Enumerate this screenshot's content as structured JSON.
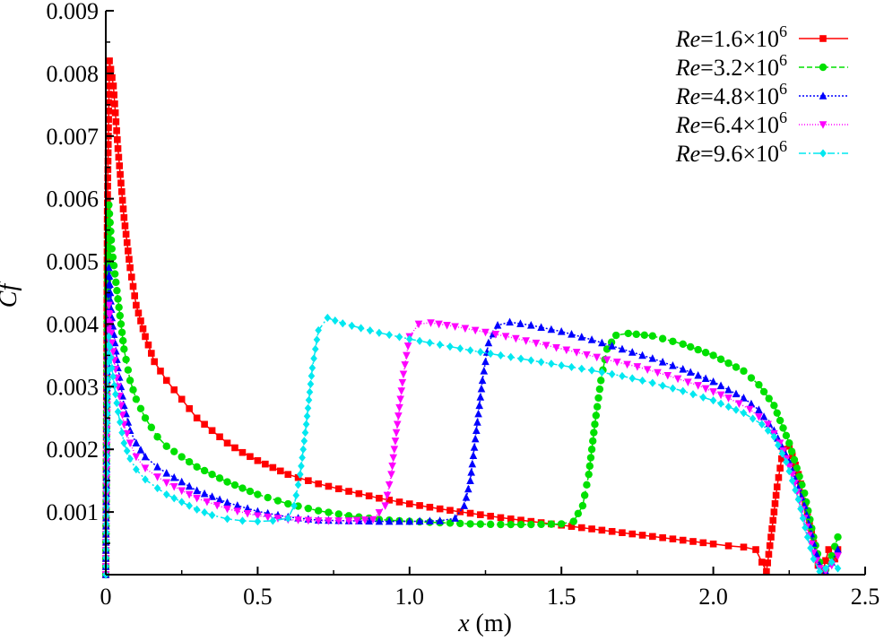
{
  "chart_data": {
    "type": "line",
    "title": "",
    "xlabel": "x (m)",
    "xlabel_var": "x",
    "xlabel_unit": " (m)",
    "ylabel": "Cf",
    "xlim": [
      0,
      2.5
    ],
    "ylim": [
      0,
      0.009
    ],
    "xticks": [
      0,
      0.5,
      1.0,
      1.5,
      2.0,
      2.5
    ],
    "xtick_labels": [
      "0",
      "0.5",
      "1.0",
      "1.5",
      "2.0",
      "2.5"
    ],
    "yticks": [
      0.001,
      0.002,
      0.003,
      0.004,
      0.005,
      0.006,
      0.007,
      0.008,
      0.009
    ],
    "ytick_labels": [
      "0.001",
      "0.002",
      "0.003",
      "0.004",
      "0.005",
      "0.006",
      "0.007",
      "0.008",
      "0.009"
    ],
    "grid": false,
    "legend_position": "top-right",
    "series": [
      {
        "name": "Re=1.6×10^6",
        "label_var": "Re",
        "label_rest": "=1.6×10",
        "label_exp": "6",
        "color": "#ff0000",
        "marker": "square",
        "dash": "",
        "points": [
          [
            0,
            0
          ],
          [
            0.005,
            0.0058
          ],
          [
            0.012,
            0.0082
          ],
          [
            0.025,
            0.0078
          ],
          [
            0.04,
            0.0068
          ],
          [
            0.06,
            0.0057
          ],
          [
            0.08,
            0.0049
          ],
          [
            0.1,
            0.0043
          ],
          [
            0.13,
            0.0038
          ],
          [
            0.16,
            0.0034
          ],
          [
            0.2,
            0.0031
          ],
          [
            0.25,
            0.0028
          ],
          [
            0.3,
            0.0025
          ],
          [
            0.35,
            0.0023
          ],
          [
            0.4,
            0.0021
          ],
          [
            0.45,
            0.00195
          ],
          [
            0.5,
            0.00182
          ],
          [
            0.6,
            0.0016
          ],
          [
            0.7,
            0.00145
          ],
          [
            0.8,
            0.00133
          ],
          [
            0.9,
            0.00122
          ],
          [
            1.0,
            0.00113
          ],
          [
            1.1,
            0.00105
          ],
          [
            1.2,
            0.00098
          ],
          [
            1.3,
            0.00091
          ],
          [
            1.4,
            0.00085
          ],
          [
            1.5,
            0.00079
          ],
          [
            1.6,
            0.00073
          ],
          [
            1.7,
            0.00067
          ],
          [
            1.8,
            0.00061
          ],
          [
            1.9,
            0.00055
          ],
          [
            2.0,
            0.00049
          ],
          [
            2.05,
            0.00046
          ],
          [
            2.1,
            0.00044
          ],
          [
            2.14,
            0.0004
          ],
          [
            2.16,
            0.0002
          ],
          [
            2.175,
            5e-05
          ],
          [
            2.19,
            0.0006
          ],
          [
            2.21,
            0.0014
          ],
          [
            2.23,
            0.002
          ],
          [
            2.25,
            0.00205
          ],
          [
            2.28,
            0.0016
          ],
          [
            2.31,
            0.001
          ],
          [
            2.33,
            0.0005
          ],
          [
            2.345,
            0.00015
          ],
          [
            2.36,
            5e-05
          ],
          [
            2.38,
            0.0004
          ],
          [
            2.4,
            0.00025
          ],
          [
            2.41,
            0.0004
          ]
        ]
      },
      {
        "name": "Re=3.2×10^6",
        "label_var": "Re",
        "label_rest": "=3.2×10",
        "label_exp": "6",
        "color": "#00e000",
        "marker": "circle",
        "dash": "6 3",
        "points": [
          [
            0,
            0
          ],
          [
            0.005,
            0.0043
          ],
          [
            0.01,
            0.0059
          ],
          [
            0.02,
            0.0052
          ],
          [
            0.04,
            0.0044
          ],
          [
            0.06,
            0.0036
          ],
          [
            0.08,
            0.0031
          ],
          [
            0.1,
            0.0028
          ],
          [
            0.13,
            0.0025
          ],
          [
            0.17,
            0.0022
          ],
          [
            0.2,
            0.00205
          ],
          [
            0.25,
            0.00188
          ],
          [
            0.3,
            0.00172
          ],
          [
            0.4,
            0.00148
          ],
          [
            0.5,
            0.00128
          ],
          [
            0.6,
            0.00113
          ],
          [
            0.7,
            0.00102
          ],
          [
            0.8,
            0.00094
          ],
          [
            0.9,
            0.00088
          ],
          [
            1.0,
            0.00085
          ],
          [
            1.1,
            0.00083
          ],
          [
            1.2,
            0.00081
          ],
          [
            1.3,
            0.0008
          ],
          [
            1.4,
            0.0008
          ],
          [
            1.5,
            0.00081
          ],
          [
            1.54,
            0.00085
          ],
          [
            1.57,
            0.0011
          ],
          [
            1.59,
            0.0016
          ],
          [
            1.61,
            0.0024
          ],
          [
            1.63,
            0.0031
          ],
          [
            1.65,
            0.0036
          ],
          [
            1.68,
            0.00382
          ],
          [
            1.72,
            0.00385
          ],
          [
            1.8,
            0.00381
          ],
          [
            1.9,
            0.00368
          ],
          [
            2.0,
            0.0035
          ],
          [
            2.1,
            0.00325
          ],
          [
            2.15,
            0.00303
          ],
          [
            2.2,
            0.0027
          ],
          [
            2.25,
            0.0021
          ],
          [
            2.3,
            0.0013
          ],
          [
            2.33,
            0.0006
          ],
          [
            2.35,
            0.0002
          ],
          [
            2.37,
            8e-05
          ],
          [
            2.39,
            0.0003
          ],
          [
            2.41,
            0.0006
          ]
        ]
      },
      {
        "name": "Re=4.8×10^6",
        "label_var": "Re",
        "label_rest": "=4.8×10",
        "label_exp": "6",
        "color": "#0000ff",
        "marker": "triangle-up",
        "dash": "2 2",
        "points": [
          [
            0,
            0
          ],
          [
            0.005,
            0.0035
          ],
          [
            0.01,
            0.0049
          ],
          [
            0.02,
            0.0041
          ],
          [
            0.04,
            0.0033
          ],
          [
            0.06,
            0.0027
          ],
          [
            0.08,
            0.0023
          ],
          [
            0.1,
            0.0021
          ],
          [
            0.13,
            0.00188
          ],
          [
            0.17,
            0.00172
          ],
          [
            0.2,
            0.00162
          ],
          [
            0.25,
            0.00148
          ],
          [
            0.3,
            0.00134
          ],
          [
            0.4,
            0.00115
          ],
          [
            0.5,
            0.00101
          ],
          [
            0.6,
            0.00092
          ],
          [
            0.7,
            0.00087
          ],
          [
            0.8,
            0.00086
          ],
          [
            0.9,
            0.00085
          ],
          [
            1.0,
            0.00085
          ],
          [
            1.1,
            0.00086
          ],
          [
            1.15,
            0.0009
          ],
          [
            1.18,
            0.0011
          ],
          [
            1.2,
            0.0015
          ],
          [
            1.22,
            0.0023
          ],
          [
            1.24,
            0.0031
          ],
          [
            1.26,
            0.0037
          ],
          [
            1.29,
            0.00398
          ],
          [
            1.33,
            0.00403
          ],
          [
            1.4,
            0.00398
          ],
          [
            1.5,
            0.00388
          ],
          [
            1.6,
            0.00375
          ],
          [
            1.7,
            0.0036
          ],
          [
            1.8,
            0.00345
          ],
          [
            1.9,
            0.00328
          ],
          [
            2.0,
            0.00308
          ],
          [
            2.1,
            0.00282
          ],
          [
            2.15,
            0.00263
          ],
          [
            2.2,
            0.0023
          ],
          [
            2.25,
            0.0018
          ],
          [
            2.3,
            0.0011
          ],
          [
            2.33,
            0.0005
          ],
          [
            2.35,
            0.00015
          ],
          [
            2.37,
            5e-05
          ],
          [
            2.39,
            0.0002
          ],
          [
            2.41,
            0.0004
          ]
        ]
      },
      {
        "name": "Re=6.4×10^6",
        "label_var": "Re",
        "label_rest": "=6.4×10",
        "label_exp": "6",
        "color": "#ff00ff",
        "marker": "triangle-down",
        "dash": "1 2",
        "points": [
          [
            0,
            0
          ],
          [
            0.005,
            0.0031
          ],
          [
            0.01,
            0.0043
          ],
          [
            0.02,
            0.0037
          ],
          [
            0.04,
            0.003
          ],
          [
            0.06,
            0.0024
          ],
          [
            0.08,
            0.0021
          ],
          [
            0.1,
            0.00188
          ],
          [
            0.13,
            0.0017
          ],
          [
            0.17,
            0.00156
          ],
          [
            0.2,
            0.00147
          ],
          [
            0.25,
            0.00134
          ],
          [
            0.3,
            0.00122
          ],
          [
            0.4,
            0.00105
          ],
          [
            0.5,
            0.00094
          ],
          [
            0.6,
            0.00088
          ],
          [
            0.7,
            0.00086
          ],
          [
            0.8,
            0.00086
          ],
          [
            0.88,
            0.00088
          ],
          [
            0.92,
            0.0011
          ],
          [
            0.94,
            0.0016
          ],
          [
            0.96,
            0.0024
          ],
          [
            0.98,
            0.0032
          ],
          [
            1.0,
            0.0038
          ],
          [
            1.03,
            0.004
          ],
          [
            1.07,
            0.00402
          ],
          [
            1.15,
            0.00396
          ],
          [
            1.25,
            0.00387
          ],
          [
            1.35,
            0.00377
          ],
          [
            1.45,
            0.00366
          ],
          [
            1.55,
            0.00355
          ],
          [
            1.65,
            0.00343
          ],
          [
            1.75,
            0.00332
          ],
          [
            1.85,
            0.00318
          ],
          [
            1.95,
            0.00302
          ],
          [
            2.05,
            0.00282
          ],
          [
            2.12,
            0.00264
          ],
          [
            2.18,
            0.0024
          ],
          [
            2.22,
            0.0021
          ],
          [
            2.26,
            0.0016
          ],
          [
            2.3,
            0.0009
          ],
          [
            2.33,
            0.00035
          ],
          [
            2.35,
            0.0001
          ],
          [
            2.37,
            5e-05
          ],
          [
            2.39,
            0.00015
          ],
          [
            2.41,
            0.0003
          ]
        ]
      },
      {
        "name": "Re=9.6×10^6",
        "label_var": "Re",
        "label_rest": "=9.6×10",
        "label_exp": "6",
        "color": "#00e8f0",
        "marker": "diamond",
        "dash": "8 3 2 3",
        "points": [
          [
            0,
            0
          ],
          [
            0.005,
            0.0027
          ],
          [
            0.01,
            0.0038
          ],
          [
            0.02,
            0.0033
          ],
          [
            0.04,
            0.0026
          ],
          [
            0.06,
            0.0021
          ],
          [
            0.08,
            0.00185
          ],
          [
            0.1,
            0.00168
          ],
          [
            0.13,
            0.00152
          ],
          [
            0.17,
            0.00138
          ],
          [
            0.2,
            0.00128
          ],
          [
            0.25,
            0.00116
          ],
          [
            0.3,
            0.00104
          ],
          [
            0.35,
            0.00095
          ],
          [
            0.4,
            0.00089
          ],
          [
            0.45,
            0.00086
          ],
          [
            0.5,
            0.00085
          ],
          [
            0.55,
            0.00086
          ],
          [
            0.6,
            0.0009
          ],
          [
            0.62,
            0.0011
          ],
          [
            0.64,
            0.0016
          ],
          [
            0.66,
            0.0024
          ],
          [
            0.68,
            0.0033
          ],
          [
            0.7,
            0.0039
          ],
          [
            0.73,
            0.0041
          ],
          [
            0.78,
            0.00401
          ],
          [
            0.9,
            0.00386
          ],
          [
            1.0,
            0.00376
          ],
          [
            1.1,
            0.00367
          ],
          [
            1.2,
            0.00358
          ],
          [
            1.3,
            0.0035
          ],
          [
            1.4,
            0.00342
          ],
          [
            1.5,
            0.00334
          ],
          [
            1.6,
            0.00326
          ],
          [
            1.7,
            0.00317
          ],
          [
            1.8,
            0.00306
          ],
          [
            1.9,
            0.00293
          ],
          [
            2.0,
            0.00278
          ],
          [
            2.1,
            0.00258
          ],
          [
            2.16,
            0.0024
          ],
          [
            2.2,
            0.0022
          ],
          [
            2.24,
            0.0018
          ],
          [
            2.28,
            0.0012
          ],
          [
            2.31,
            0.0006
          ],
          [
            2.33,
            0.00025
          ],
          [
            2.35,
            5e-05
          ],
          [
            2.37,
            0.0001
          ],
          [
            2.39,
            0.0002
          ],
          [
            2.41,
            0.0001
          ]
        ]
      }
    ]
  }
}
